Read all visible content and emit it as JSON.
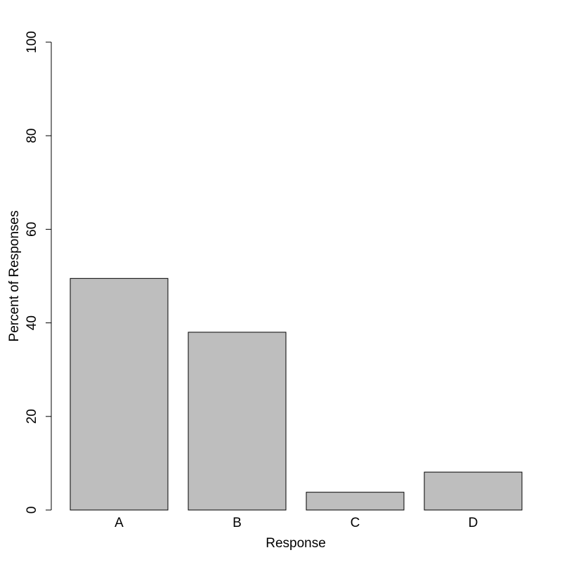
{
  "chart_data": {
    "type": "bar",
    "categories": [
      "A",
      "B",
      "C",
      "D"
    ],
    "values": [
      49.5,
      38.0,
      3.8,
      8.1
    ],
    "color": "#bebebe",
    "xlabel": "Response",
    "ylabel": "Percent of Responses",
    "ylim": [
      0,
      100
    ],
    "yticks": [
      0,
      20,
      40,
      60,
      80,
      100
    ]
  }
}
